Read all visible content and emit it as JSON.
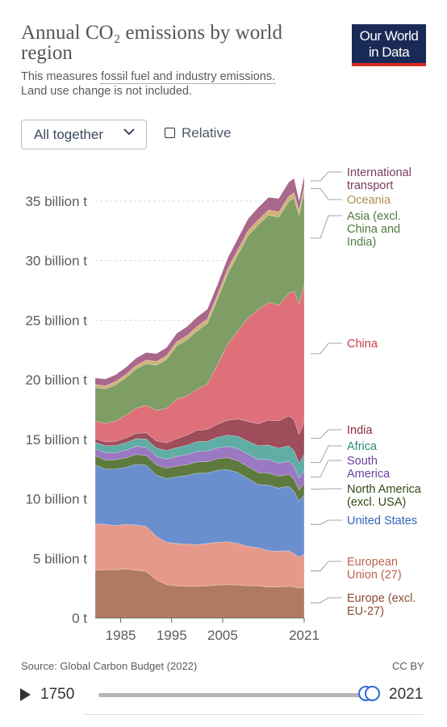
{
  "header": {
    "title": "Annual CO₂ emissions by world region",
    "subtitle_prefix": "This measures ",
    "subtitle_link": "fossil fuel and industry emissions.",
    "subtitle_suffix": "Land use change is not included.",
    "logo_line1": "Our World",
    "logo_line2": "in Data"
  },
  "controls": {
    "dropdown_value": "All together",
    "relative_label": "Relative"
  },
  "footer": {
    "source": "Source: Global Carbon Budget (2022)",
    "license": "CC BY",
    "start_year": "1750",
    "end_year": "2021",
    "slider_start": 2015,
    "slider_end": 2021
  },
  "colors": {
    "accent": "#2f6ad8",
    "logo_bg": "#1a2a57",
    "logo_stripe": "#d42b21"
  },
  "chart_data": {
    "type": "area",
    "stacked": true,
    "x": [
      1980,
      1982,
      1984,
      1986,
      1988,
      1990,
      1992,
      1994,
      1996,
      1998,
      2000,
      2002,
      2004,
      2006,
      2008,
      2010,
      2012,
      2014,
      2016,
      2018,
      2019,
      2020,
      2021
    ],
    "ylim": [
      0,
      37500
    ],
    "y_unit": "million t",
    "y_ticks": [
      {
        "value": 0,
        "label": "0 t"
      },
      {
        "value": 5000,
        "label": "5 billion t"
      },
      {
        "value": 10000,
        "label": "10 billion t"
      },
      {
        "value": 15000,
        "label": "15 billion t"
      },
      {
        "value": 20000,
        "label": "20 billion t"
      },
      {
        "value": 25000,
        "label": "25 billion t"
      },
      {
        "value": 30000,
        "label": "30 billion t"
      },
      {
        "value": 35000,
        "label": "35 billion t"
      }
    ],
    "x_ticks": [
      "1985",
      "1995",
      "2005",
      "2021"
    ],
    "x_tick_values": [
      1985,
      1995,
      2005,
      2021
    ],
    "series": [
      {
        "name": "Europe (excl. EU-27)",
        "color": "#b07a62",
        "label_color": "#8a4d36",
        "label_lines": [
          "Europe (excl.",
          "EU-27)"
        ],
        "values": [
          4000,
          4050,
          4050,
          4100,
          4000,
          3900,
          3200,
          2800,
          2700,
          2650,
          2650,
          2700,
          2750,
          2800,
          2750,
          2700,
          2700,
          2600,
          2600,
          2650,
          2600,
          2500,
          2550
        ]
      },
      {
        "name": "European Union (27)",
        "color": "#e6998a",
        "label_color": "#c0624e",
        "label_lines": [
          "European",
          "Union (27)"
        ],
        "values": [
          3900,
          3800,
          3700,
          3750,
          3800,
          3800,
          3650,
          3550,
          3550,
          3550,
          3500,
          3550,
          3600,
          3600,
          3500,
          3300,
          3200,
          3050,
          3000,
          3000,
          2800,
          2600,
          2800
        ]
      },
      {
        "name": "United States",
        "color": "#6b8fce",
        "label_color": "#3564b8",
        "label_lines": [
          "United States"
        ],
        "values": [
          4950,
          4650,
          4750,
          4800,
          5100,
          5120,
          5150,
          5350,
          5600,
          5750,
          6000,
          5900,
          6050,
          6050,
          5950,
          5700,
          5300,
          5500,
          5300,
          5400,
          5250,
          4700,
          5000
        ]
      },
      {
        "name": "North America (excl. USA)",
        "color": "#5e7a3f",
        "label_color": "#2f4a14",
        "label_lines": [
          "North America",
          "(excl. USA)"
        ],
        "values": [
          750,
          760,
          770,
          790,
          820,
          830,
          850,
          870,
          900,
          920,
          950,
          960,
          980,
          1000,
          1000,
          990,
          1000,
          1010,
          1000,
          1010,
          1000,
          920,
          950
        ]
      },
      {
        "name": "South America",
        "color": "#9b78c2",
        "label_color": "#6a3fa0",
        "label_lines": [
          "South",
          "America"
        ],
        "values": [
          600,
          620,
          600,
          650,
          680,
          700,
          720,
          760,
          800,
          850,
          880,
          880,
          900,
          950,
          1000,
          1050,
          1100,
          1150,
          1100,
          1100,
          1080,
          1000,
          1080
        ]
      },
      {
        "name": "Africa",
        "color": "#5fada5",
        "label_color": "#2b8a80",
        "label_lines": [
          "Africa"
        ],
        "values": [
          550,
          580,
          600,
          620,
          650,
          680,
          700,
          720,
          750,
          780,
          820,
          840,
          880,
          950,
          1050,
          1100,
          1150,
          1200,
          1250,
          1300,
          1320,
          1260,
          1350
        ]
      },
      {
        "name": "India",
        "color": "#9f4c5b",
        "label_color": "#8c2a3e",
        "label_lines": [
          "India"
        ],
        "values": [
          290,
          320,
          360,
          400,
          450,
          520,
          600,
          650,
          750,
          850,
          950,
          1000,
          1100,
          1250,
          1450,
          1650,
          1850,
          2100,
          2300,
          2500,
          2600,
          2420,
          2700
        ]
      },
      {
        "name": "China",
        "color": "#dd7079",
        "label_color": "#c73a4a",
        "label_lines": [
          "China"
        ],
        "values": [
          1500,
          1550,
          1700,
          1900,
          2100,
          2300,
          2550,
          2900,
          3300,
          3300,
          3450,
          3800,
          5000,
          6400,
          7400,
          8700,
          9600,
          9900,
          9700,
          10300,
          10800,
          11000,
          11500
        ]
      },
      {
        "name": "Asia (excl. China and India)",
        "color": "#7f9e66",
        "label_color": "#4f7a3c",
        "label_lines": [
          "Asia (excl.",
          "China and",
          "India)"
        ],
        "values": [
          2800,
          2900,
          3050,
          3150,
          3300,
          3500,
          3800,
          4100,
          4500,
          4700,
          4900,
          5100,
          5500,
          5900,
          6400,
          6900,
          7100,
          7300,
          7400,
          7700,
          7800,
          7400,
          7900
        ]
      },
      {
        "name": "Oceania",
        "color": "#d1b27a",
        "label_color": "#b08c4e",
        "label_lines": [
          "Oceania"
        ],
        "values": [
          250,
          260,
          270,
          280,
          290,
          300,
          310,
          320,
          340,
          360,
          380,
          390,
          400,
          420,
          430,
          440,
          440,
          440,
          440,
          450,
          450,
          430,
          440
        ]
      },
      {
        "name": "International transport",
        "color": "#a8678b",
        "label_color": "#7a3b62",
        "label_lines": [
          "International",
          "transport"
        ],
        "values": [
          560,
          560,
          570,
          590,
          610,
          630,
          650,
          680,
          710,
          740,
          780,
          790,
          830,
          890,
          940,
          980,
          1020,
          1060,
          1120,
          1180,
          1200,
          800,
          850
        ]
      }
    ]
  }
}
